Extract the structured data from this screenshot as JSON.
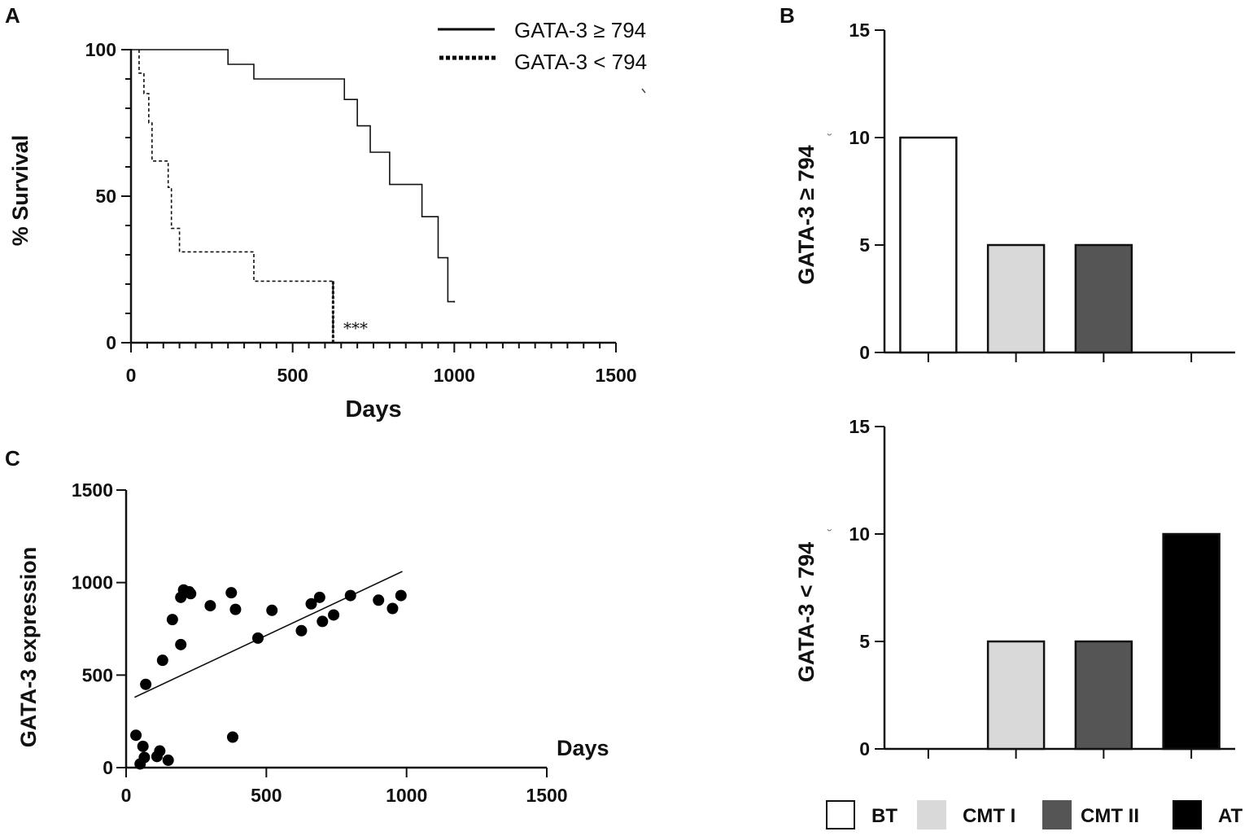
{
  "panel_labels": {
    "a": "A",
    "b": "B",
    "c": "C"
  },
  "chart_data": [
    {
      "panel": "A",
      "type": "line",
      "title": "",
      "xlabel": "Days",
      "ylabel": "% Survival",
      "xlim": [
        0,
        1500
      ],
      "ylim": [
        0,
        100
      ],
      "xticks": [
        0,
        500,
        1000,
        1500
      ],
      "yticks": [
        0,
        50,
        100
      ],
      "legend": {
        "position": "top-right",
        "entries": [
          "GATA-3 ≥ 794",
          "GATA-3 < 794"
        ]
      },
      "annotation": "***",
      "series": [
        {
          "name": "GATA-3 ≥ 794",
          "style": "solid",
          "x": [
            0,
            300,
            300,
            380,
            380,
            660,
            660,
            700,
            700,
            740,
            740,
            800,
            800,
            900,
            900,
            950,
            950,
            980,
            980,
            1000
          ],
          "y": [
            100,
            100,
            95,
            95,
            90,
            90,
            83,
            83,
            74,
            74,
            65,
            65,
            54,
            54,
            43,
            43,
            29,
            29,
            14,
            14
          ]
        },
        {
          "name": "GATA-3 < 794",
          "style": "dashed",
          "x": [
            25,
            25,
            40,
            40,
            55,
            55,
            65,
            65,
            115,
            115,
            125,
            125,
            150,
            150,
            380,
            380,
            625,
            625
          ],
          "y": [
            100,
            92,
            92,
            85,
            85,
            75,
            75,
            62,
            62,
            53,
            53,
            39,
            39,
            31,
            31,
            21,
            21,
            0
          ]
        }
      ]
    },
    {
      "panel": "B-top",
      "type": "bar",
      "ylabel": "GATA-3 ≥ 794",
      "ylim": [
        0,
        15
      ],
      "yticks": [
        0,
        5,
        10,
        15
      ],
      "categories": [
        "BT",
        "CMT I",
        "CMT II",
        "AT"
      ],
      "values": [
        10,
        5,
        5,
        0
      ],
      "colors": [
        "#ffffff",
        "#d9d9d9",
        "#555555",
        "#000000"
      ]
    },
    {
      "panel": "B-bottom",
      "type": "bar",
      "ylabel": "GATA-3 < 794",
      "ylim": [
        0,
        15
      ],
      "yticks": [
        0,
        5,
        10,
        15
      ],
      "categories": [
        "BT",
        "CMT I",
        "CMT II",
        "AT"
      ],
      "values": [
        0,
        5,
        5,
        10
      ],
      "colors": [
        "#ffffff",
        "#d9d9d9",
        "#555555",
        "#000000"
      ]
    },
    {
      "panel": "C",
      "type": "scatter",
      "xlabel": "Days",
      "ylabel": "GATA-3 expression",
      "xlim": [
        0,
        1500
      ],
      "ylim": [
        0,
        1500
      ],
      "xticks": [
        0,
        500,
        1000,
        1500
      ],
      "yticks": [
        0,
        500,
        1000,
        1500
      ],
      "trendline": {
        "x": [
          30,
          985
        ],
        "y": [
          380,
          1060
        ]
      },
      "points": [
        [
          35,
          175
        ],
        [
          50,
          20
        ],
        [
          60,
          115
        ],
        [
          65,
          55
        ],
        [
          70,
          450
        ],
        [
          110,
          60
        ],
        [
          120,
          90
        ],
        [
          130,
          580
        ],
        [
          150,
          40
        ],
        [
          165,
          800
        ],
        [
          195,
          665
        ],
        [
          195,
          920
        ],
        [
          205,
          960
        ],
        [
          225,
          950
        ],
        [
          230,
          940
        ],
        [
          300,
          875
        ],
        [
          375,
          945
        ],
        [
          380,
          165
        ],
        [
          390,
          855
        ],
        [
          470,
          700
        ],
        [
          520,
          850
        ],
        [
          625,
          740
        ],
        [
          660,
          885
        ],
        [
          690,
          920
        ],
        [
          700,
          790
        ],
        [
          740,
          825
        ],
        [
          800,
          930
        ],
        [
          900,
          905
        ],
        [
          950,
          860
        ],
        [
          980,
          930
        ]
      ]
    }
  ],
  "legend_b": [
    {
      "label": "BT",
      "color": "#ffffff"
    },
    {
      "label": "CMT I",
      "color": "#d9d9d9"
    },
    {
      "label": "CMT II",
      "color": "#555555"
    },
    {
      "label": "AT",
      "color": "#000000"
    }
  ]
}
